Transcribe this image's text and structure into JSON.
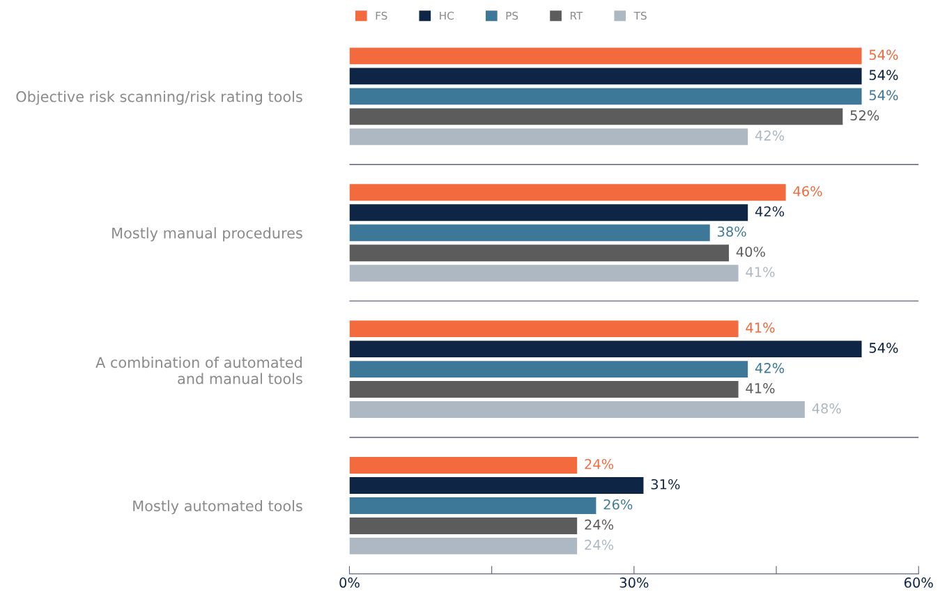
{
  "chart_data": {
    "type": "bar",
    "orientation": "horizontal",
    "categories": [
      "Objective risk scanning/risk rating tools",
      "Mostly manual procedures",
      "A combination of automated\nand manual tools",
      "Mostly automated tools"
    ],
    "series": [
      {
        "name": "FS",
        "color": "#f26a3d",
        "values": [
          54,
          46,
          41,
          24
        ],
        "value_labels": [
          "54%",
          "46%",
          "41%",
          "24%"
        ]
      },
      {
        "name": "HC",
        "color": "#0e2545",
        "values": [
          54,
          42,
          54,
          31
        ],
        "value_labels": [
          "54%",
          "42%",
          "54%",
          "31%"
        ]
      },
      {
        "name": "PS",
        "color": "#3e7898",
        "values": [
          54,
          38,
          42,
          26
        ],
        "value_labels": [
          "54%",
          "38%",
          "42%",
          "26%"
        ]
      },
      {
        "name": "RT",
        "color": "#5c5c5c",
        "values": [
          52,
          40,
          41,
          24
        ],
        "value_labels": [
          "52%",
          "40%",
          "41%",
          "24%"
        ]
      },
      {
        "name": "TS",
        "color": "#adb8c2",
        "values": [
          42,
          41,
          48,
          24
        ],
        "value_labels": [
          "42%",
          "41%",
          "48%",
          "24%"
        ]
      }
    ],
    "xlim": [
      0,
      60
    ],
    "xticks": [
      {
        "value": 0,
        "label": "0%"
      },
      {
        "value": 15,
        "label": null
      },
      {
        "value": 30,
        "label": "30%"
      },
      {
        "value": 45,
        "label": null
      },
      {
        "value": 60,
        "label": "60%"
      }
    ],
    "legend": "top left",
    "grid": false
  }
}
